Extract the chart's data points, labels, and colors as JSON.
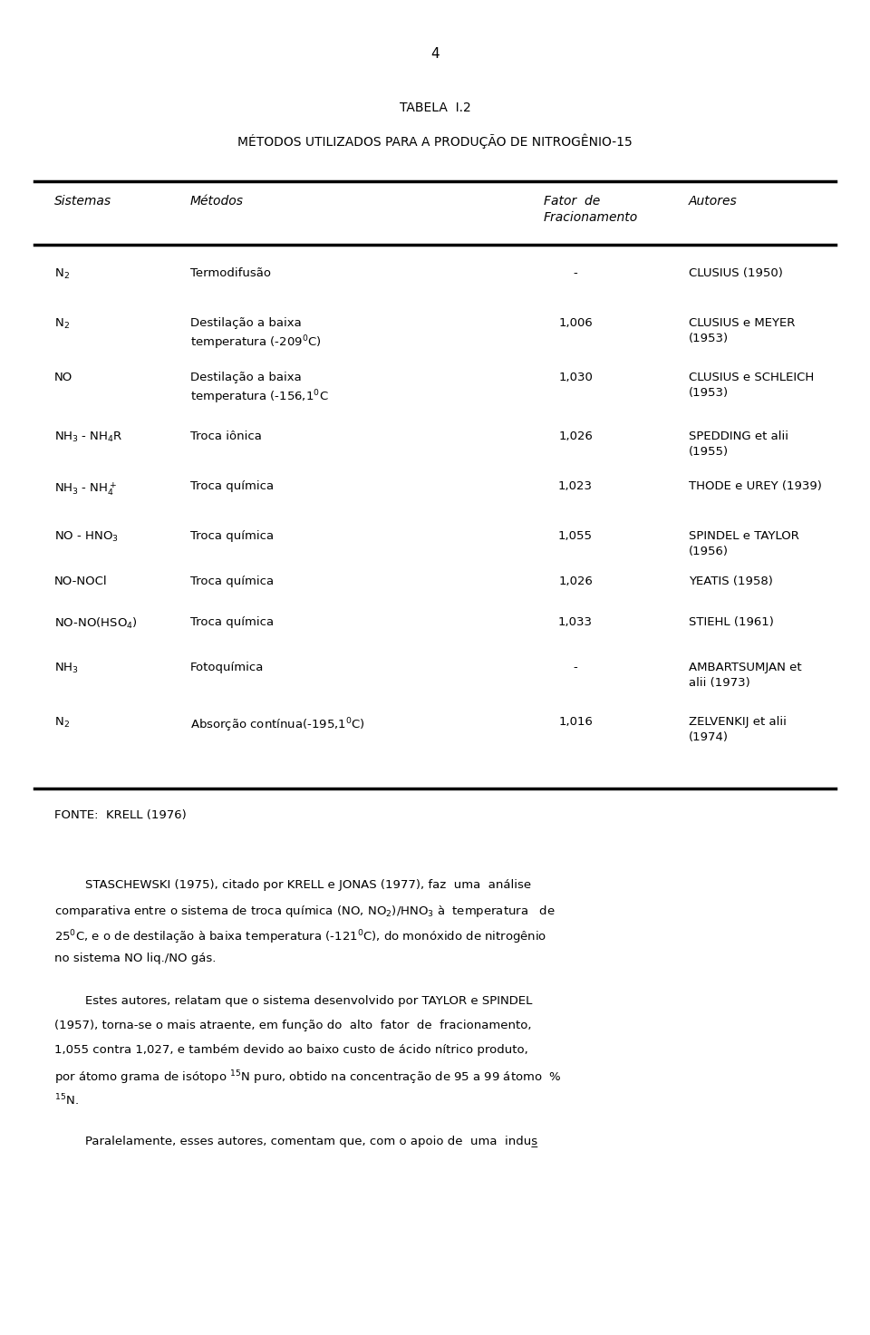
{
  "page_number": "4",
  "title1": "TABELA  I.2",
  "title2": "MÉTODOS UTILIZADOS PARA A PRODUÇÃO DE NITROGÊNIO-15",
  "col_headers": [
    "Sistemas",
    "Métodos",
    "Fator de\nFracionamento",
    "Autores"
  ],
  "rows": [
    {
      "sistema": "N$_2$",
      "metodo": "Termodifusão",
      "fator": "-",
      "autores": "CLUSIUS (1950)"
    },
    {
      "sistema": "N$_2$",
      "metodo": "Destilação a baixa\ntemperatura (-209$^0$C)",
      "fator": "1,006",
      "autores": "CLUSIUS e MEYER\n(1953)"
    },
    {
      "sistema": "NO",
      "metodo": "Destilação a baixa\ntemperatura (-156,1$^0$C",
      "fator": "1,030",
      "autores": "CLUSIUS e SCHLEICH\n(1953)"
    },
    {
      "sistema": "NH$_3$ - NH$_4$R",
      "metodo": "Troca iônica",
      "fator": "1,026",
      "autores": "SPEDDING et alii\n(1955)"
    },
    {
      "sistema": "NH$_3$ - NH$_4^+$",
      "metodo": "Troca química",
      "fator": "1,023",
      "autores": "THODE e UREY (1939)"
    },
    {
      "sistema": "NO - HNO$_3$",
      "metodo": "Troca química",
      "fator": "1,055",
      "autores": "SPINDEL e TAYLOR\n(1956)"
    },
    {
      "sistema": "NO-NOCl",
      "metodo": "Troca química",
      "fator": "1,026",
      "autores": "YEATIS (1958)"
    },
    {
      "sistema": "NO-NO(HSO$_4$)",
      "metodo": "Troca química",
      "fator": "1,033",
      "autores": "STIEHL (1961)"
    },
    {
      "sistema": "NH$_3$",
      "metodo": "Fotoquímica",
      "fator": "-",
      "autores": "AMBARTSUMJAN et\nalii (1973)"
    },
    {
      "sistema": "N$_2$",
      "metodo": "Absorção contínua(-195,1$^0$C)",
      "fator": "1,016",
      "autores": "ZELVENKIJ et alii\n(1974)"
    }
  ],
  "fonte_text": "FONTE:  KRELL (1976)",
  "p1_first": "        STASCHEWSKI (1975), citado por KRELL e JONAS (1977), faz  uma  análise",
  "p1_rest": [
    "comparativa entre o sistema de troca química (NO, NO$_2$)/HNO$_3$ à  temperatura   de",
    "25$^0$C, e o de destilação à baixa temperatura (-121$^0$C), do monóxido de nitrogênio",
    "no sistema NO liq./NO gás."
  ],
  "p2_first": "        Estes autores, relatam que o sistema desenvolvido por TAYLOR e SPINDEL",
  "p2_rest": [
    "(1957), torna-se o mais atraente, em função do  alto  fator  de  fracionamento,",
    "1,055 contra 1,027, e também devido ao baixo custo de ácido nítrico produto,",
    "por átomo grama de isótopo $^{15}$N puro, obtido na concentração de 95 a 99 átomo  %",
    "$^{15}$N."
  ],
  "p3_first": "        Paralelamente, esses autores, comentam que, com o apoio de  uma  indus̲",
  "bg_color": "#ffffff",
  "text_color": "#000000"
}
